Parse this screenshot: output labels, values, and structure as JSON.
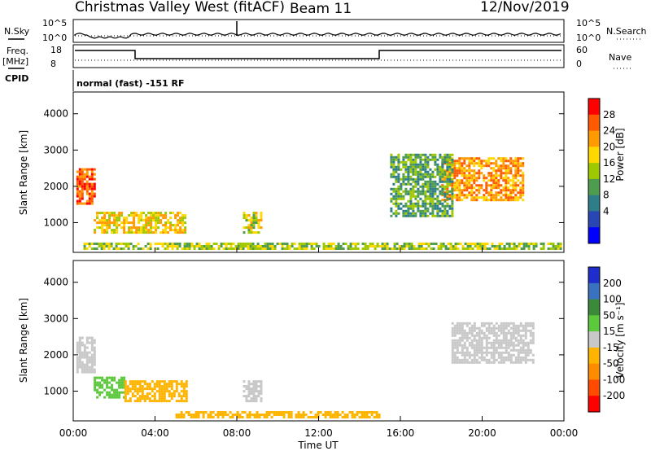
{
  "header": {
    "title": "Christmas Valley West (fitACF)",
    "beam": "Beam 11",
    "date": "12/Nov/2019"
  },
  "panels": {
    "nsky_label": "N.Sky",
    "nsearch_label": "N.Search",
    "nsky_ticks": [
      "10^5",
      "10^0"
    ],
    "nsearch_ticks": [
      "10^5",
      "10^0"
    ],
    "freq_label": "Freq.",
    "freq_unit": "[MHz]",
    "freq_ticks": [
      "18",
      "8"
    ],
    "nave_label": "Nave",
    "nave_ticks": [
      "60",
      "0"
    ],
    "cpid_label": "CPID",
    "cpid_text": "normal (fast) -151 RF"
  },
  "chart_data": [
    {
      "type": "heatmap",
      "name": "power",
      "ylabel": "Slant Range [km]",
      "xlabel": "",
      "y_ticks": [
        "4000",
        "3000",
        "2000",
        "1000"
      ],
      "ylim": [
        180,
        4600
      ],
      "colorbar_label": "Power [dB]",
      "colorbar_ticks": [
        "28",
        "24",
        "20",
        "16",
        "12",
        "8",
        "4"
      ],
      "colorbar_colors": [
        "#ff0000",
        "#ff5a00",
        "#ff9a00",
        "#ffd800",
        "#9ec800",
        "#4e9c4e",
        "#2e7e8a",
        "#2846b4",
        "#0000ff"
      ],
      "regions": [
        {
          "x0": 0.15,
          "x1": 1.0,
          "y0": 1500,
          "y1": 2500,
          "level": 26
        },
        {
          "x0": 1.0,
          "x1": 5.5,
          "y0": 700,
          "y1": 1300,
          "level": 18
        },
        {
          "x0": 8.3,
          "x1": 9.2,
          "y0": 700,
          "y1": 1300,
          "level": 16
        },
        {
          "x0": 18.0,
          "x1": 22.0,
          "y0": 1600,
          "y1": 2800,
          "level": 22
        },
        {
          "x0": 15.5,
          "x1": 18.5,
          "y0": 1200,
          "y1": 2900,
          "level": 10
        },
        {
          "x0": 0.5,
          "x1": 23.8,
          "y0": 250,
          "y1": 450,
          "level": 14
        }
      ]
    },
    {
      "type": "heatmap",
      "name": "velocity",
      "ylabel": "Slant Range [km]",
      "xlabel": "Time UT",
      "x_ticks": [
        "00:00",
        "04:00",
        "08:00",
        "12:00",
        "16:00",
        "20:00",
        "00:00"
      ],
      "y_ticks": [
        "4000",
        "3000",
        "2000",
        "1000"
      ],
      "ylim": [
        180,
        4600
      ],
      "colorbar_label": "Velocity [m s⁻¹]",
      "colorbar_ticks": [
        "200",
        "100",
        "50",
        "15",
        "-15",
        "-50",
        "-100",
        "-200"
      ],
      "colorbar_colors": [
        "#1e2ecc",
        "#3a72c0",
        "#3a8a3a",
        "#5cc83c",
        "#c8c8c8",
        "#ffb400",
        "#ff8c00",
        "#ff4a00",
        "#ff0000"
      ],
      "regions": [
        {
          "x0": 0.15,
          "x1": 1.0,
          "y0": 1500,
          "y1": 2500,
          "level": 0
        },
        {
          "x0": 1.0,
          "x1": 2.5,
          "y0": 800,
          "y1": 1400,
          "level": 40
        },
        {
          "x0": 2.5,
          "x1": 5.5,
          "y0": 700,
          "y1": 1300,
          "level": -30
        },
        {
          "x0": 8.3,
          "x1": 9.2,
          "y0": 700,
          "y1": 1300,
          "level": 0
        },
        {
          "x0": 18.5,
          "x1": 22.5,
          "y0": 1800,
          "y1": 2900,
          "level": 0
        },
        {
          "x0": 5.0,
          "x1": 15.0,
          "y0": 250,
          "y1": 450,
          "level": -30
        }
      ]
    }
  ]
}
